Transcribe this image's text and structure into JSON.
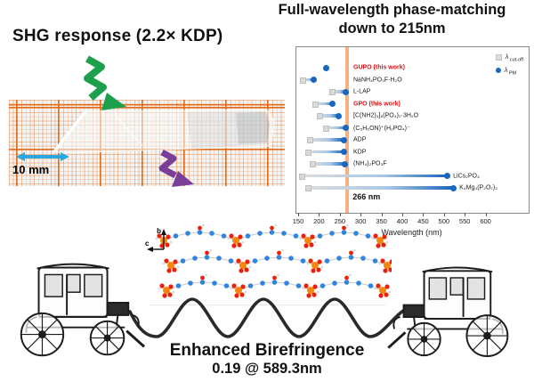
{
  "left_panel": {
    "title": "SHG response (2.2× KDP)",
    "scale_label": "10 mm",
    "colors": {
      "green_arrow": "#1da04c",
      "purple_arrow": "#7a3e99",
      "scale_arrow": "#2ba7e1",
      "grid_orange": "#e8731a"
    }
  },
  "chart": {
    "title_line1": "Full-wavelength phase-matching",
    "title_line2": "down to 215nm"
  },
  "chart_data": {
    "type": "dumbbell",
    "xlabel": "Wavelength (nm)",
    "xlim": [
      150,
      680
    ],
    "x_ticks": [
      150,
      200,
      250,
      300,
      350,
      400,
      450,
      500,
      550,
      600
    ],
    "grid": false,
    "legend_position": "top-right",
    "reference_line": {
      "value": 266,
      "label": "266 nm",
      "color": "#f5b183"
    },
    "legend": [
      {
        "symbol": "λ",
        "subscript": "cut-off",
        "marker": "gray-square"
      },
      {
        "symbol": "λ",
        "subscript": "PM",
        "marker": "blue-circle"
      }
    ],
    "marker_colors": {
      "cutoff": "#d9d9d9",
      "pm": "#1866bd",
      "highlight_label": "#e60f12"
    },
    "rows": [
      {
        "label": "GUPO (this work)",
        "highlight": true,
        "cutoff_nm": null,
        "pm_nm": 215,
        "label_side": "left"
      },
      {
        "label": "NaNH₄PO₃F·H₂O",
        "highlight": false,
        "cutoff_nm": 158,
        "pm_nm": 186,
        "label_side": "left"
      },
      {
        "label": "L-LAP",
        "highlight": false,
        "cutoff_nm": 229,
        "pm_nm": 263,
        "label_side": "left"
      },
      {
        "label": "GPO (this work)",
        "highlight": true,
        "cutoff_nm": 188,
        "pm_nm": 231,
        "label_side": "left"
      },
      {
        "label": "[C(NH2)₃]₆(PO₄)₂·3H₂O",
        "highlight": false,
        "cutoff_nm": 199,
        "pm_nm": 246,
        "label_side": "left"
      },
      {
        "label": "(C₅H₆ON)⁺(H₂PO₄)⁻",
        "highlight": false,
        "cutoff_nm": 214,
        "pm_nm": 263,
        "label_side": "left"
      },
      {
        "label": "ADP",
        "highlight": false,
        "cutoff_nm": 176,
        "pm_nm": 257,
        "label_side": "left"
      },
      {
        "label": "KDP",
        "highlight": false,
        "cutoff_nm": 171,
        "pm_nm": 257,
        "label_side": "left"
      },
      {
        "label": "(NH₄)₂PO₃F",
        "highlight": false,
        "cutoff_nm": 182,
        "pm_nm": 261,
        "label_side": "left"
      },
      {
        "label": "LiCs₂PO₄",
        "highlight": false,
        "cutoff_nm": 156,
        "pm_nm": 505,
        "label_side": "right"
      },
      {
        "label": "K₄Mg₄(P₂O₇)₃",
        "highlight": false,
        "cutoff_nm": 171,
        "pm_nm": 520,
        "label_side": "right"
      }
    ]
  },
  "bottom": {
    "caption_line1": "Enhanced Birefringence",
    "caption_line2": "0.19 @ 589.3nm",
    "axis_b": "b",
    "axis_c": "c"
  }
}
